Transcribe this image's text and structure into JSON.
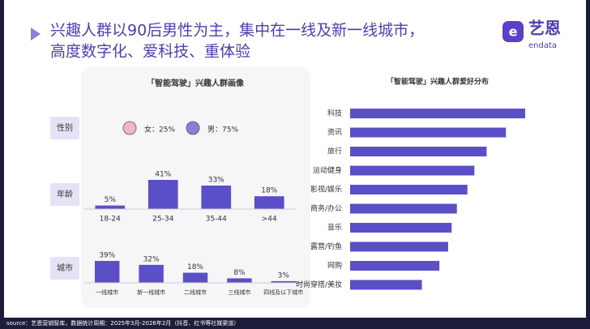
{
  "header": {
    "title_line1": "兴趣人群以90后男性为主，集中在一线及新一线城市，",
    "title_line2": "高度数字化、爱科技、重体验"
  },
  "logo": {
    "name": "艺恩",
    "sub": "endata"
  },
  "panel_title": "「智能驾驶」兴趣人群画像",
  "chart_data": [
    {
      "type": "icon",
      "label": "性别",
      "categories": [
        "女",
        "男"
      ],
      "values": [
        25,
        75
      ],
      "value_labels": [
        "女：25%",
        "男：75%"
      ],
      "colors": [
        "#f3b6c8",
        "#8b7fd6"
      ]
    },
    {
      "type": "bar",
      "label": "年龄",
      "categories": [
        "18-24",
        "25-34",
        "35-44",
        ">44"
      ],
      "values": [
        5,
        41,
        33,
        18
      ],
      "value_labels": [
        "5%",
        "41%",
        "33%",
        "18%"
      ],
      "color": "#5b4fc7"
    },
    {
      "type": "bar",
      "label": "城市",
      "categories": [
        "一线城市",
        "新一线城市",
        "二线城市",
        "三线城市",
        "四线及以下城市"
      ],
      "values": [
        39,
        32,
        18,
        8,
        3
      ],
      "value_labels": [
        "39%",
        "32%",
        "18%",
        "8%",
        "3%"
      ],
      "color": "#5b4fc7"
    },
    {
      "type": "hbar",
      "title": "「智能驾驶」兴趣人群爱好分布",
      "categories": [
        "科技",
        "资讯",
        "旅行",
        "运动健身",
        "影视/娱乐",
        "商务/办公",
        "音乐",
        "露营/钓鱼",
        "网购",
        "时尚穿搭/美妆"
      ],
      "values": [
        100,
        89,
        78,
        71,
        67,
        61,
        58,
        56,
        51,
        41
      ],
      "color": "#5b4fc7"
    }
  ],
  "source": "source：艺恩营销智库，数据统计周期：2025年3月-2026年2月（抖音、红书等社媒渠道）"
}
